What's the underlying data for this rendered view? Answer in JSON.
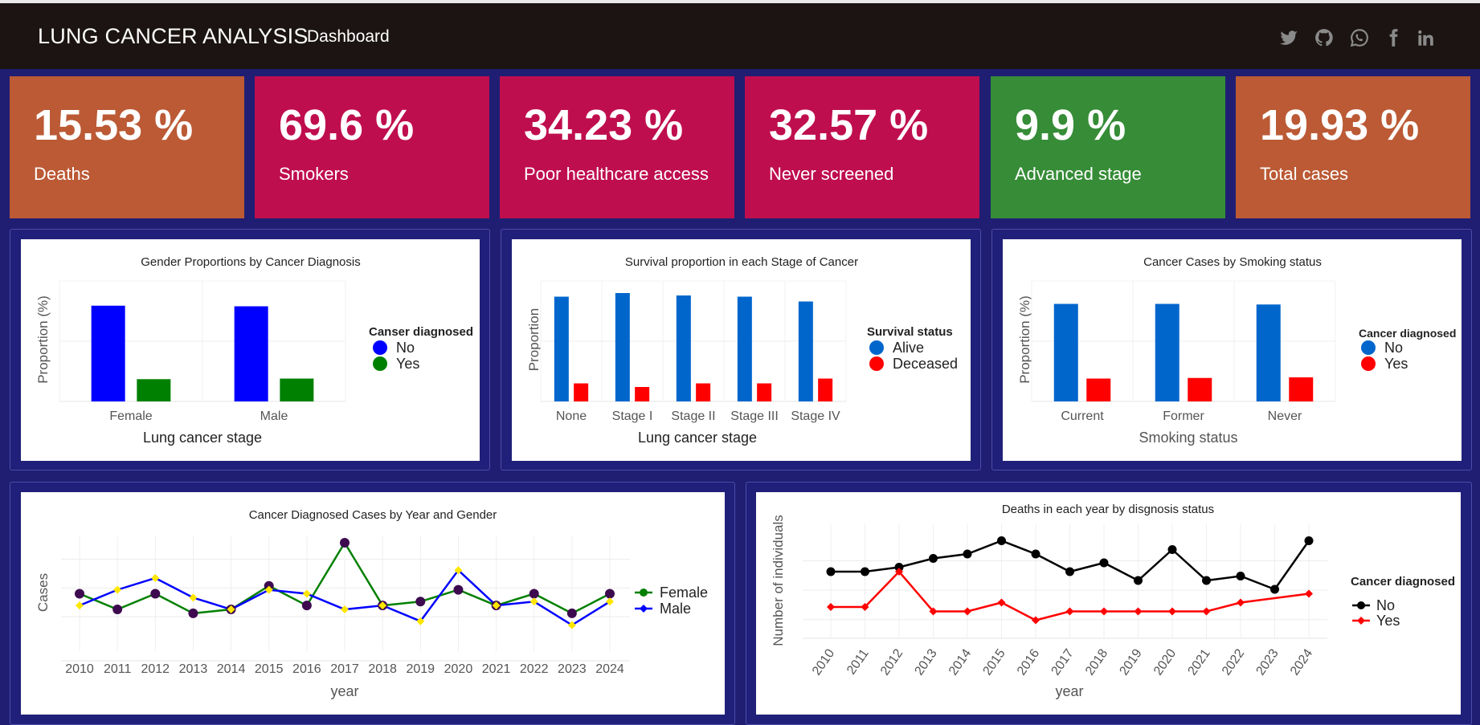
{
  "header": {
    "title": "LUNG CANCER ANALYSIS",
    "nav_label": "Dashboard"
  },
  "social_icons": [
    "twitter-icon",
    "github-icon",
    "whatsapp-icon",
    "facebook-icon",
    "linkedin-icon"
  ],
  "kpis": [
    {
      "value": "15.53 %",
      "label": "Deaths",
      "color": "#bb5a35"
    },
    {
      "value": "69.6 %",
      "label": "Smokers",
      "color": "#bf0e4e"
    },
    {
      "value": "34.23 %",
      "label": "Poor healthcare access",
      "color": "#bf0e4e"
    },
    {
      "value": "32.57 %",
      "label": "Never screened",
      "color": "#bf0e4e"
    },
    {
      "value": "9.9 %",
      "label": "Advanced stage",
      "color": "#368c37"
    },
    {
      "value": "19.93 %",
      "label": "Total cases",
      "color": "#bb5a35"
    }
  ],
  "charts": {
    "gender": {
      "title": "Gender Proportions by Cancer Diagnosis",
      "ylabel": "Proportion (%)",
      "xlabel": "Lung cancer stage",
      "legend_title": "Canser diagnosed"
    },
    "survival": {
      "title": "Survival proportion in each Stage of Cancer",
      "ylabel": "Proportion",
      "xlabel": "Lung cancer stage",
      "legend_title": "Survival status"
    },
    "smoking": {
      "title": "Cancer Cases by Smoking status",
      "ylabel": "Proportion (%)",
      "xlabel": "Smoking status",
      "legend_title": "Cancer diagnosed"
    },
    "year_gender": {
      "title": "Cancer Diagnosed Cases by Year and Gender",
      "ylabel": "Cases",
      "xlabel": "year",
      "legend_title": ""
    },
    "deaths_year": {
      "title": "Deaths in each year by disgnosis status",
      "ylabel": "Number of individuals",
      "xlabel": "year",
      "legend_title": "Cancer diagnosed"
    }
  },
  "chart_data": [
    {
      "type": "bar",
      "title": "Gender Proportions by Cancer Diagnosis",
      "xlabel": "Lung cancer stage",
      "ylabel": "Proportion (%)",
      "categories": [
        "Female",
        "Male"
      ],
      "ylim": [
        0,
        100
      ],
      "grid": true,
      "legend": "right",
      "series": [
        {
          "name": "No",
          "color": "#0000ff",
          "values": [
            79.5,
            79
          ]
        },
        {
          "name": "Yes",
          "color": "#008000",
          "values": [
            18.5,
            19
          ]
        }
      ]
    },
    {
      "type": "bar",
      "title": "Survival proportion in each Stage of Cancer",
      "xlabel": "Lung cancer stage",
      "ylabel": "Proportion",
      "categories": [
        "None",
        "Stage I",
        "Stage II",
        "Stage III",
        "Stage IV"
      ],
      "ylim": [
        0,
        1
      ],
      "grid": true,
      "legend": "right",
      "series": [
        {
          "name": "Alive",
          "color": "#0066cc",
          "values": [
            0.87,
            0.9,
            0.88,
            0.87,
            0.83
          ]
        },
        {
          "name": "Deceased",
          "color": "#ff0000",
          "values": [
            0.15,
            0.12,
            0.15,
            0.15,
            0.19
          ]
        }
      ]
    },
    {
      "type": "bar",
      "title": "Cancer Cases by Smoking status",
      "xlabel": "Smoking status",
      "ylabel": "Proportion (%)",
      "categories": [
        "Current",
        "Former",
        "Never"
      ],
      "ylim": [
        0,
        100
      ],
      "grid": true,
      "legend": "right",
      "series": [
        {
          "name": "No",
          "color": "#0066cc",
          "values": [
            81,
            81,
            80.5
          ]
        },
        {
          "name": "Yes",
          "color": "#ff0000",
          "values": [
            19,
            19.5,
            20
          ]
        }
      ]
    },
    {
      "type": "line",
      "title": "Cancer Diagnosed Cases by Year and Gender",
      "xlabel": "year",
      "ylabel": "Cases",
      "x": [
        2010,
        2011,
        2012,
        2013,
        2014,
        2015,
        2016,
        2017,
        2018,
        2019,
        2020,
        2021,
        2022,
        2023,
        2024
      ],
      "ylim": [
        0,
        26
      ],
      "grid": true,
      "legend": "right",
      "series": [
        {
          "name": "Female",
          "color": "#008000",
          "point_color": "#3d0a4f",
          "values": [
            13,
            9,
            13,
            8,
            9,
            15,
            10,
            26,
            10,
            11,
            14,
            10,
            13,
            8,
            13
          ]
        },
        {
          "name": "Male",
          "color": "#0000ff",
          "point_color": "#ffe600",
          "values": [
            10,
            14,
            17,
            12,
            9,
            14,
            13,
            9,
            10,
            6,
            19,
            10,
            11,
            5,
            11
          ]
        }
      ]
    },
    {
      "type": "line",
      "title": "Deaths in each year by disgnosis status",
      "xlabel": "year",
      "ylabel": "Number of individuals",
      "x": [
        2010,
        2011,
        2012,
        2013,
        2014,
        2015,
        2016,
        2017,
        2018,
        2019,
        2020,
        2021,
        2022,
        2023,
        2024
      ],
      "ylim": [
        0,
        20
      ],
      "grid": true,
      "legend": "right",
      "series": [
        {
          "name": "No",
          "color": "#000000",
          "values": [
            12,
            12,
            13,
            15,
            16,
            19,
            16,
            12,
            14,
            10,
            17,
            10,
            11,
            8,
            19
          ]
        },
        {
          "name": "Yes",
          "color": "#ff0000",
          "values": [
            4,
            4,
            12,
            3,
            3,
            5,
            1,
            3,
            3,
            3,
            3,
            3,
            5,
            null,
            7
          ]
        }
      ]
    }
  ]
}
